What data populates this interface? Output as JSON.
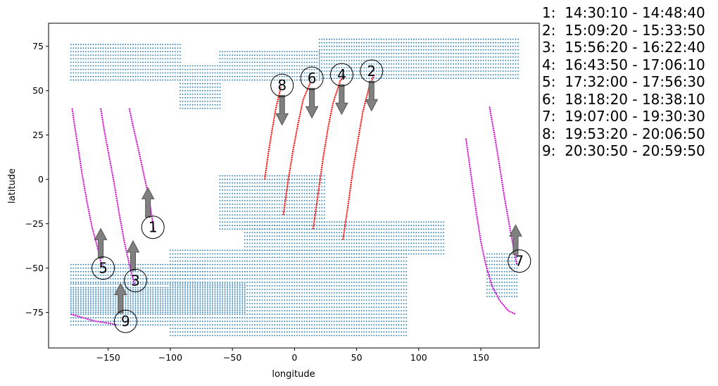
{
  "chart_data": {
    "type": "scatter",
    "title": "",
    "xlabel": "longitude",
    "ylabel": "latitude",
    "xlim": [
      -198,
      197
    ],
    "ylim": [
      -95,
      88
    ],
    "xticks": [
      -150,
      -100,
      -50,
      0,
      50,
      100,
      150
    ],
    "yticks": [
      -75,
      -50,
      -25,
      0,
      25,
      50,
      75
    ],
    "grid": false,
    "legend_placement": "outside-right",
    "colors": {
      "land_dots": "#1f77b4",
      "ascending_pass": "#ff0000",
      "descending_pass": "#cc00cc",
      "arrow_fill": "#808080",
      "arrow_edge": "#555555"
    },
    "passes": [
      {
        "label": "1",
        "time_range": "14:30:10 - 14:48:40",
        "color": "magenta",
        "arrow": "up",
        "track": [
          [
            -133,
            40
          ],
          [
            -130,
            30
          ],
          [
            -126,
            18
          ],
          [
            -122,
            5
          ],
          [
            -118,
            -8
          ],
          [
            -115,
            -20
          ],
          [
            -113,
            -30
          ]
        ],
        "circle_center": [
          -114,
          -27
        ],
        "arrow_pos": [
          -118,
          -13
        ]
      },
      {
        "label": "2",
        "time_range": "15:09:20 - 15:33:50",
        "color": "red",
        "arrow": "down",
        "track": [
          [
            39,
            -34
          ],
          [
            43,
            -15
          ],
          [
            47,
            5
          ],
          [
            51,
            22
          ],
          [
            55,
            38
          ],
          [
            60,
            52
          ],
          [
            64,
            59
          ]
        ],
        "circle_center": [
          62,
          61
        ],
        "arrow_pos": [
          62,
          47
        ]
      },
      {
        "label": "3",
        "time_range": "15:56:20 - 16:22:40",
        "color": "magenta",
        "arrow": "up",
        "track": [
          [
            -156,
            40
          ],
          [
            -153,
            27
          ],
          [
            -149,
            12
          ],
          [
            -145,
            -3
          ],
          [
            -141,
            -20
          ],
          [
            -137,
            -35
          ],
          [
            -133,
            -48
          ],
          [
            -129,
            -59
          ]
        ],
        "circle_center": [
          -128,
          -57
        ],
        "arrow_pos": [
          -130,
          -43
        ]
      },
      {
        "label": "4",
        "time_range": "16:43:50 - 17:06:10",
        "color": "red",
        "arrow": "down",
        "track": [
          [
            15,
            -28
          ],
          [
            19,
            -8
          ],
          [
            23,
            12
          ],
          [
            27,
            29
          ],
          [
            31,
            43
          ],
          [
            37,
            56
          ],
          [
            41,
            58
          ]
        ],
        "circle_center": [
          38,
          59
        ],
        "arrow_pos": [
          38,
          45
        ]
      },
      {
        "label": "5",
        "time_range": "17:32:00 - 17:56:30",
        "color": "magenta",
        "arrow": "up",
        "track": [
          [
            -179,
            40
          ],
          [
            -177,
            30
          ],
          [
            -174,
            17
          ],
          [
            -171,
            3
          ],
          [
            -167,
            -13
          ],
          [
            -163,
            -27
          ],
          [
            -158,
            -40
          ],
          [
            -155,
            -49
          ]
        ],
        "circle_center": [
          -154,
          -50
        ],
        "arrow_pos": [
          -156,
          -36
        ]
      },
      {
        "label": "6",
        "time_range": "18:18:20 - 18:38:10",
        "color": "red",
        "arrow": "down",
        "track": [
          [
            -9,
            -20
          ],
          [
            -5,
            0
          ],
          [
            -1,
            17
          ],
          [
            3,
            32
          ],
          [
            7,
            45
          ],
          [
            13,
            55
          ]
        ],
        "circle_center": [
          14,
          57
        ],
        "arrow_pos": [
          14,
          43
        ]
      },
      {
        "label": "7",
        "time_range": "19:07:00 - 19:30:30",
        "color": "magenta",
        "arrow": "up",
        "track": [
          [
            157,
            41
          ],
          [
            161,
            25
          ],
          [
            165,
            8
          ],
          [
            169,
            -10
          ],
          [
            173,
            -26
          ],
          [
            177,
            -41
          ],
          [
            179,
            -48
          ]
        ],
        "circle_center": [
          181,
          -46
        ],
        "arrow_pos": [
          178,
          -34
        ],
        "track2": [
          [
            138,
            23
          ],
          [
            142,
            3
          ],
          [
            146,
            -17
          ],
          [
            150,
            -35
          ],
          [
            154,
            -48
          ],
          [
            159,
            -60
          ],
          [
            165,
            -68
          ],
          [
            172,
            -74
          ],
          [
            178,
            -76
          ]
        ]
      },
      {
        "label": "8",
        "time_range": "19:53:20 - 20:06:50",
        "color": "red",
        "arrow": "down",
        "track": [
          [
            -24,
            0
          ],
          [
            -21,
            15
          ],
          [
            -18,
            28
          ],
          [
            -15,
            40
          ],
          [
            -11,
            52
          ]
        ],
        "circle_center": [
          -10,
          53
        ],
        "arrow_pos": [
          -10,
          39
        ]
      },
      {
        "label": "9",
        "time_range": "20:30:50 - 20:59:50",
        "color": "magenta",
        "arrow": "up",
        "track": [
          [
            -180,
            -76
          ],
          [
            -170,
            -78
          ],
          [
            -160,
            -80
          ],
          [
            -150,
            -81
          ],
          [
            -143,
            -82
          ]
        ],
        "circle_center": [
          -136,
          -80
        ],
        "arrow_pos": [
          -140,
          -67
        ]
      }
    ],
    "land_regions": [
      {
        "lon": [
          -180,
          -92
        ],
        "lat": [
          56,
          76
        ]
      },
      {
        "lon": [
          -92,
          -60
        ],
        "lat": [
          40,
          65
        ]
      },
      {
        "lon": [
          -60,
          20
        ],
        "lat": [
          56,
          72
        ]
      },
      {
        "lon": [
          20,
          180
        ],
        "lat": [
          57,
          79
        ]
      },
      {
        "lon": [
          -60,
          25
        ],
        "lat": [
          -28,
          2
        ]
      },
      {
        "lon": [
          -40,
          120
        ],
        "lat": [
          -42,
          -23
        ]
      },
      {
        "lon": [
          -180,
          -72
        ],
        "lat": [
          -58,
          -48
        ]
      },
      {
        "lon": [
          -180,
          -40
        ],
        "lat": [
          -75,
          -58
        ]
      },
      {
        "lon": [
          -180,
          -100
        ],
        "lat": [
          -82,
          -62
        ]
      },
      {
        "lon": [
          -100,
          90
        ],
        "lat": [
          -88,
          -40
        ]
      },
      {
        "lon": [
          155,
          180
        ],
        "lat": [
          -66,
          -42
        ]
      }
    ]
  }
}
